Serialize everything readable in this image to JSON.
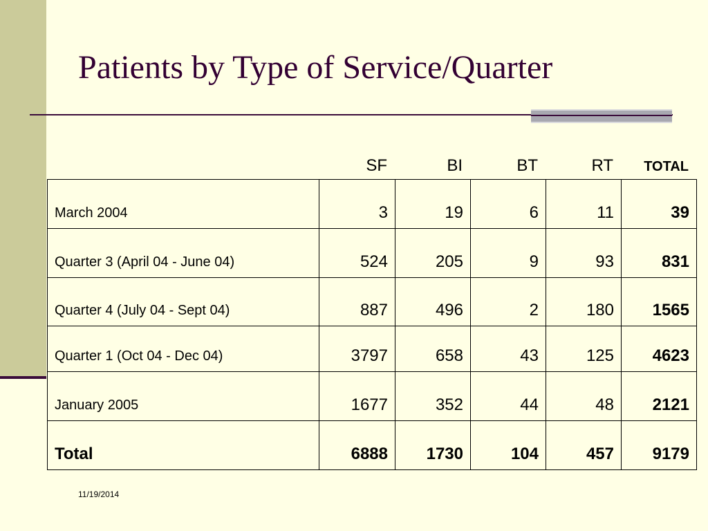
{
  "slide": {
    "title": "Patients by Type of Service/Quarter",
    "date": "11/19/2014",
    "colors": {
      "background": "#FFFFE5",
      "sidebar": "#CBCB9A",
      "title": "#330033",
      "rule": "#3A0B3A"
    }
  },
  "table": {
    "headers": [
      "SF",
      "BI",
      "BT",
      "RT",
      "TOTAL"
    ],
    "rows": [
      {
        "label": "March 2004",
        "values": [
          "3",
          "19",
          "6",
          "11"
        ],
        "total": "39"
      },
      {
        "label": "Quarter 3 (April 04 - June 04)",
        "values": [
          "524",
          "205",
          "9",
          "93"
        ],
        "total": "831"
      },
      {
        "label": "Quarter 4 (July 04 - Sept 04)",
        "values": [
          "887",
          "496",
          "2",
          "180"
        ],
        "total": "1565"
      },
      {
        "label": "Quarter 1 (Oct 04 - Dec 04)",
        "values": [
          "3797",
          "658",
          "43",
          "125"
        ],
        "total": "4623"
      },
      {
        "label": "January 2005",
        "values": [
          "1677",
          "352",
          "44",
          "48"
        ],
        "total": "2121"
      }
    ],
    "total_row": {
      "label": "Total",
      "values": [
        "6888",
        "1730",
        "104",
        "457"
      ],
      "total": "9179"
    }
  }
}
